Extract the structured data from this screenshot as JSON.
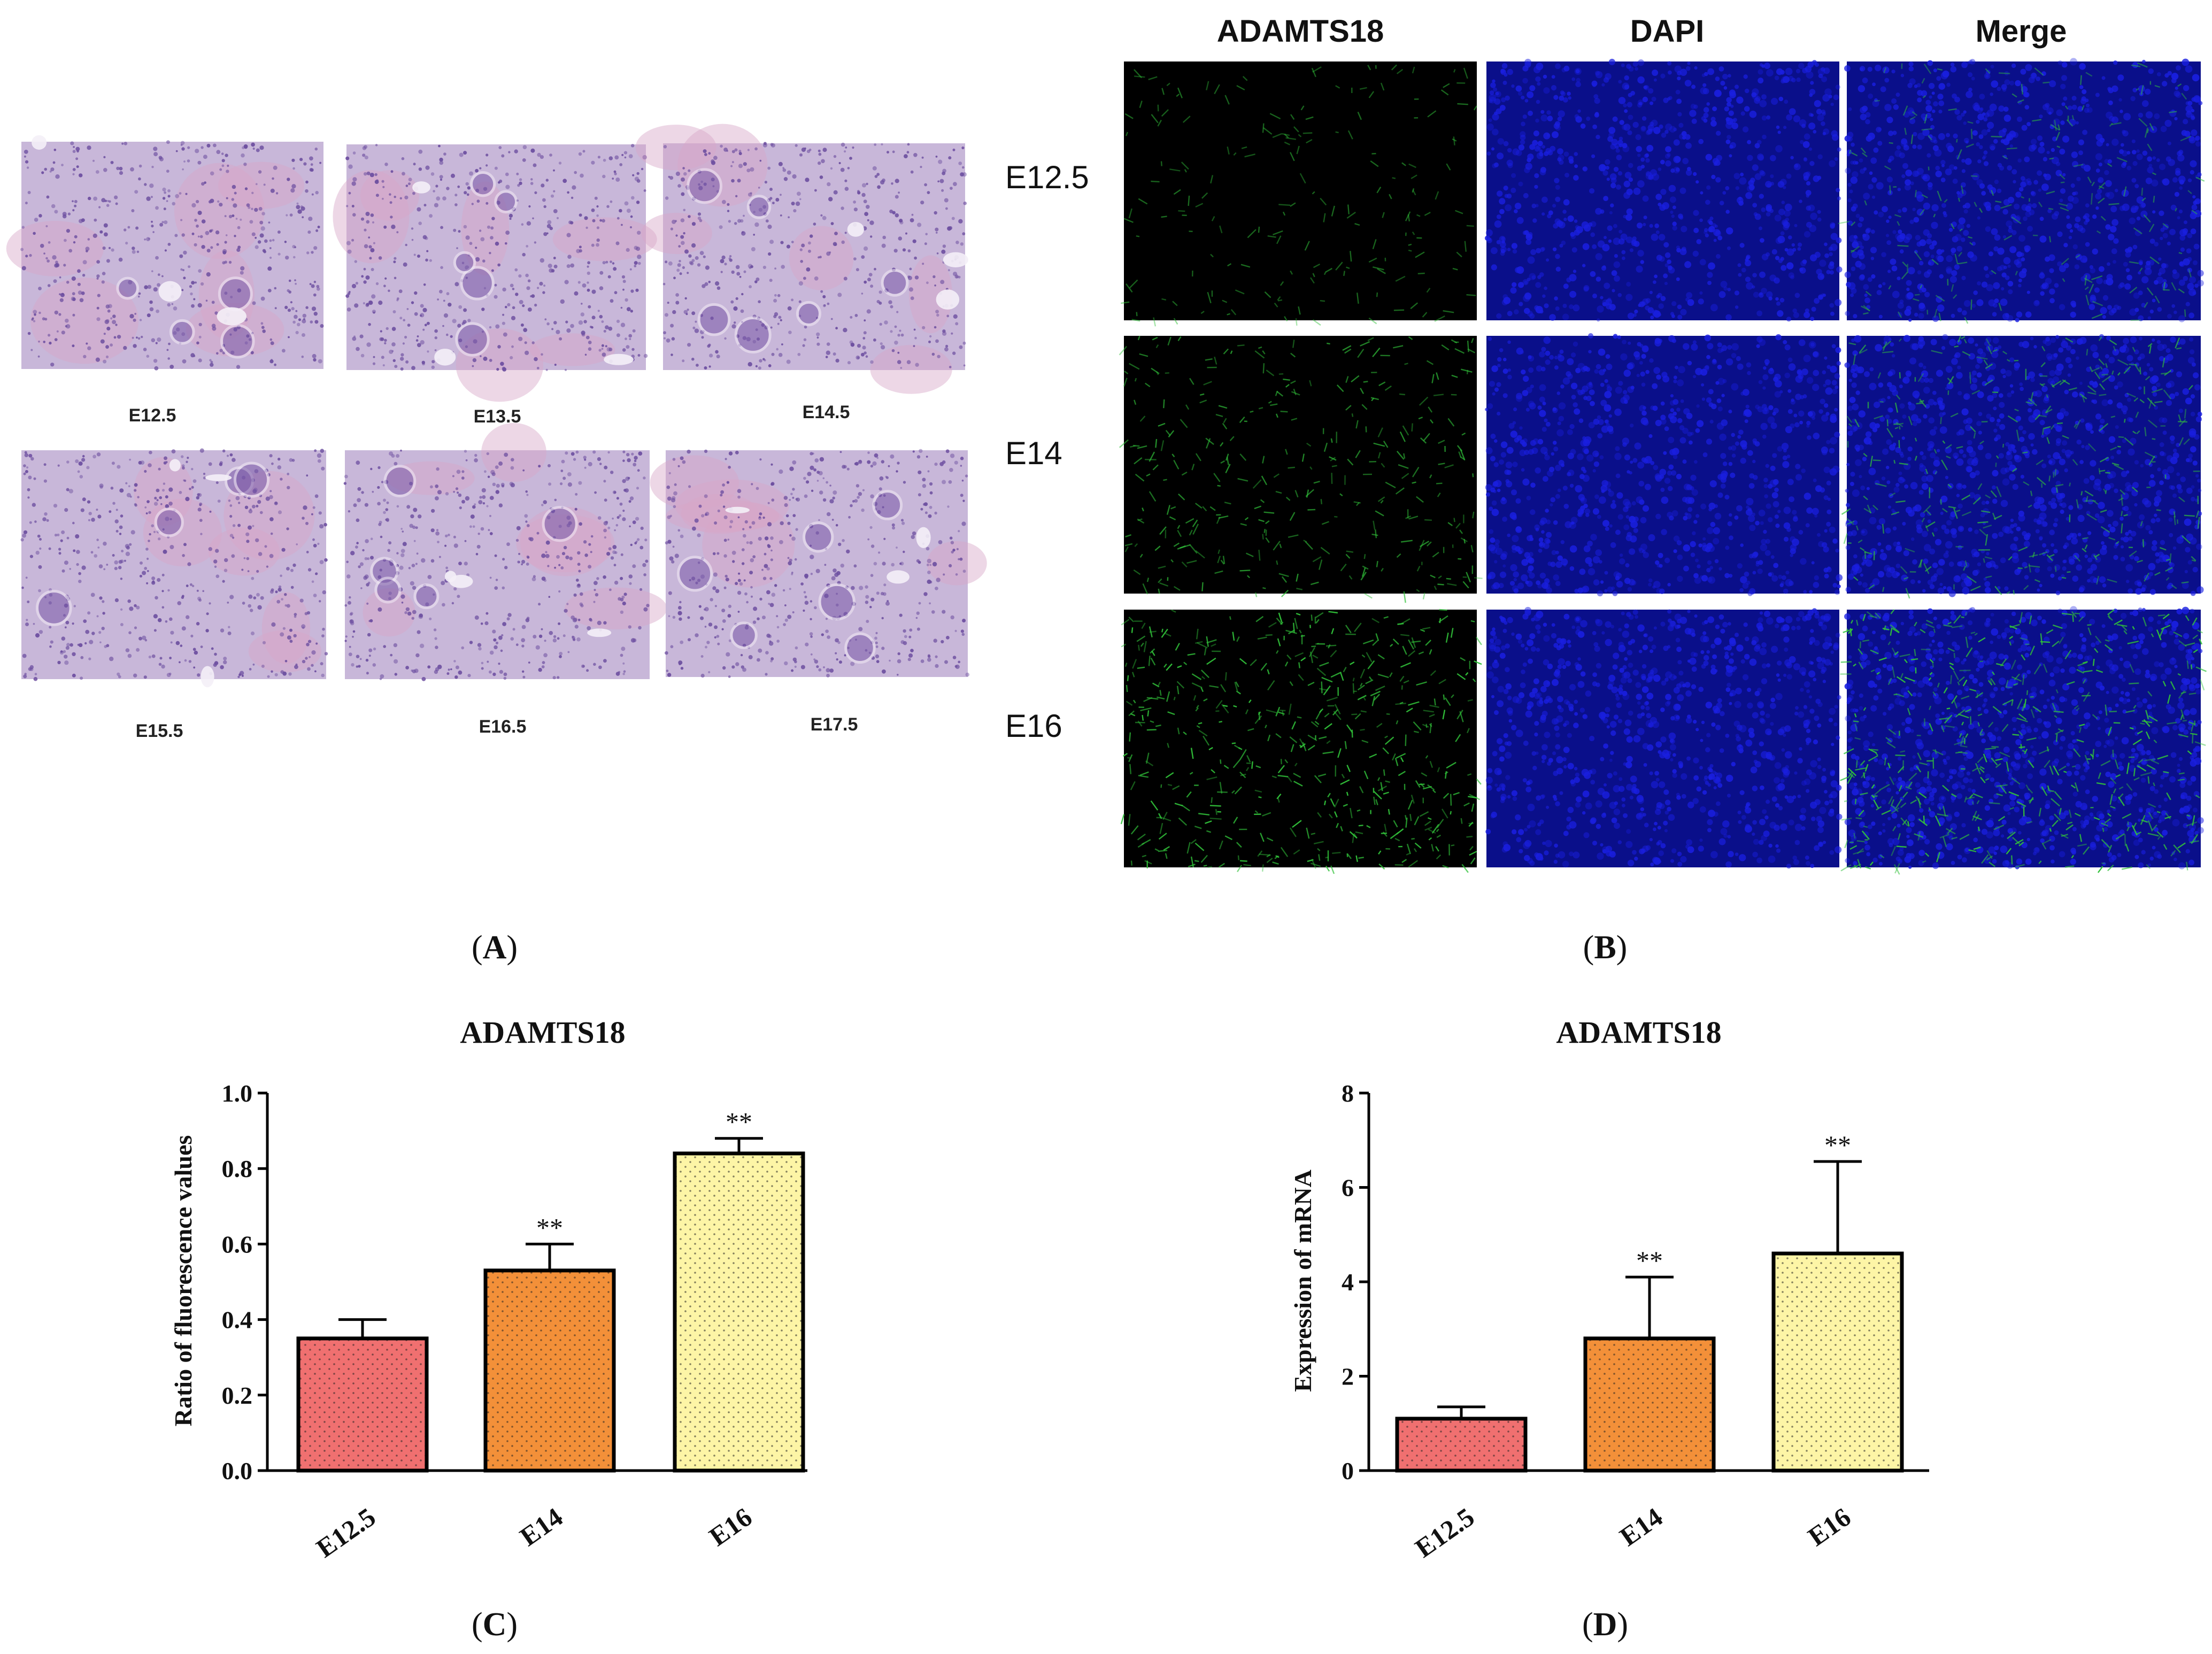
{
  "figure": {
    "panel_labels": {
      "A": [
        "(",
        "A",
        ")"
      ],
      "B": [
        "(",
        "B",
        ")"
      ],
      "C": [
        "(",
        "C",
        ")"
      ],
      "D": [
        "(",
        "D",
        ")"
      ]
    },
    "panel_a": {
      "stain_fill": "#c8b7d9",
      "stain_cell": "#6d4fa0",
      "images": [
        {
          "caption": "E12.5"
        },
        {
          "caption": "E13.5"
        },
        {
          "caption": "E14.5"
        },
        {
          "caption": "E15.5"
        },
        {
          "caption": "E16.5"
        },
        {
          "caption": "E17.5"
        }
      ]
    },
    "panel_b": {
      "column_headers": [
        "ADAMTS18",
        "DAPI",
        "Merge"
      ],
      "row_labels": [
        "E12.5",
        "E14",
        "E16"
      ],
      "green_channel_intensity": [
        0.25,
        0.55,
        0.95
      ],
      "channel_colors": {
        "green": "#31c23a",
        "blue": "#1a1fe0",
        "background": "#000000"
      }
    }
  },
  "chart_data": [
    {
      "type": "bar",
      "title": "ADAMTS18",
      "ylabel": "Ratio of fluorescence values",
      "xlabel": "",
      "categories": [
        "E12.5",
        "E14",
        "E16"
      ],
      "values": [
        0.35,
        0.53,
        0.84
      ],
      "error_upper": [
        0.4,
        0.6,
        0.88
      ],
      "annotations": [
        "",
        "**",
        "**"
      ],
      "ylim": [
        0.0,
        1.0
      ],
      "yticks": [
        "0.0",
        "0.2",
        "0.4",
        "0.6",
        "0.8",
        "1.0"
      ],
      "colors": [
        "#f07070",
        "#f39039",
        "#fdf5a6"
      ],
      "grid": false
    },
    {
      "type": "bar",
      "title": "ADAMTS18",
      "ylabel": "Expression of mRNA",
      "xlabel": "",
      "categories": [
        "E12.5",
        "E14",
        "E16"
      ],
      "values": [
        1.1,
        2.8,
        4.6
      ],
      "error_upper": [
        1.35,
        4.1,
        6.55
      ],
      "annotations": [
        "",
        "**",
        "**"
      ],
      "ylim": [
        0,
        8
      ],
      "yticks": [
        "0",
        "2",
        "4",
        "6",
        "8"
      ],
      "colors": [
        "#f07070",
        "#f39039",
        "#fdf5a6"
      ],
      "grid": false
    }
  ]
}
